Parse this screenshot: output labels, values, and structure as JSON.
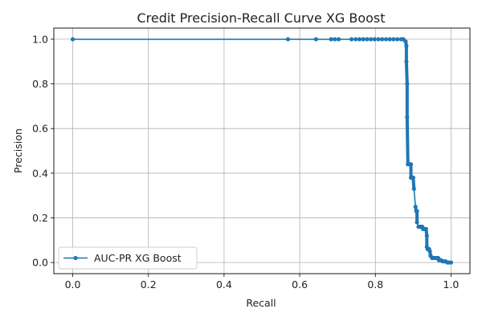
{
  "chart_data": {
    "type": "line",
    "title": "Credit Precision-Recall Curve XG Boost",
    "xlabel": "Recall",
    "ylabel": "Precision",
    "xlim": [
      -0.05,
      1.05
    ],
    "ylim": [
      -0.05,
      1.05
    ],
    "xticks": [
      0.0,
      0.2,
      0.4,
      0.6,
      0.8,
      1.0
    ],
    "yticks": [
      0.0,
      0.2,
      0.4,
      0.6,
      0.8,
      1.0
    ],
    "xtick_labels": [
      "0.0",
      "0.2",
      "0.4",
      "0.6",
      "0.8",
      "1.0"
    ],
    "ytick_labels": [
      "0.0",
      "0.2",
      "0.4",
      "0.6",
      "0.8",
      "1.0"
    ],
    "grid": true,
    "legend_position": "lower-left",
    "color": "#1f77b4",
    "series": [
      {
        "name": "AUC-PR XG Boost",
        "x": [
          0.0,
          0.569,
          0.643,
          0.683,
          0.693,
          0.703,
          0.737,
          0.748,
          0.758,
          0.768,
          0.778,
          0.788,
          0.798,
          0.808,
          0.818,
          0.828,
          0.838,
          0.848,
          0.858,
          0.868,
          0.874,
          0.88,
          0.882,
          0.882,
          0.884,
          0.884,
          0.886,
          0.89,
          0.894,
          0.894,
          0.898,
          0.9,
          0.902,
          0.906,
          0.908,
          0.91,
          0.91,
          0.914,
          0.916,
          0.918,
          0.92,
          0.922,
          0.924,
          0.926,
          0.93,
          0.934,
          0.936,
          0.936,
          0.938,
          0.94,
          0.942,
          0.944,
          0.946,
          0.946,
          0.95,
          0.954,
          0.958,
          0.962,
          0.966,
          0.968,
          0.972,
          0.974,
          0.978,
          0.982,
          0.986,
          0.99,
          0.994,
          1.0
        ],
        "y": [
          1.0,
          1.0,
          1.0,
          1.0,
          1.0,
          1.0,
          1.0,
          1.0,
          1.0,
          1.0,
          1.0,
          1.0,
          1.0,
          1.0,
          1.0,
          1.0,
          1.0,
          1.0,
          1.0,
          1.0,
          1.0,
          0.99,
          0.97,
          0.9,
          0.8,
          0.65,
          0.44,
          0.44,
          0.44,
          0.38,
          0.38,
          0.38,
          0.33,
          0.25,
          0.23,
          0.23,
          0.18,
          0.16,
          0.16,
          0.16,
          0.16,
          0.16,
          0.16,
          0.15,
          0.15,
          0.15,
          0.12,
          0.07,
          0.06,
          0.06,
          0.06,
          0.05,
          0.03,
          0.03,
          0.02,
          0.02,
          0.02,
          0.02,
          0.02,
          0.01,
          0.01,
          0.01,
          0.005,
          0.005,
          0.005,
          0.0,
          0.0,
          0.0
        ]
      }
    ]
  }
}
